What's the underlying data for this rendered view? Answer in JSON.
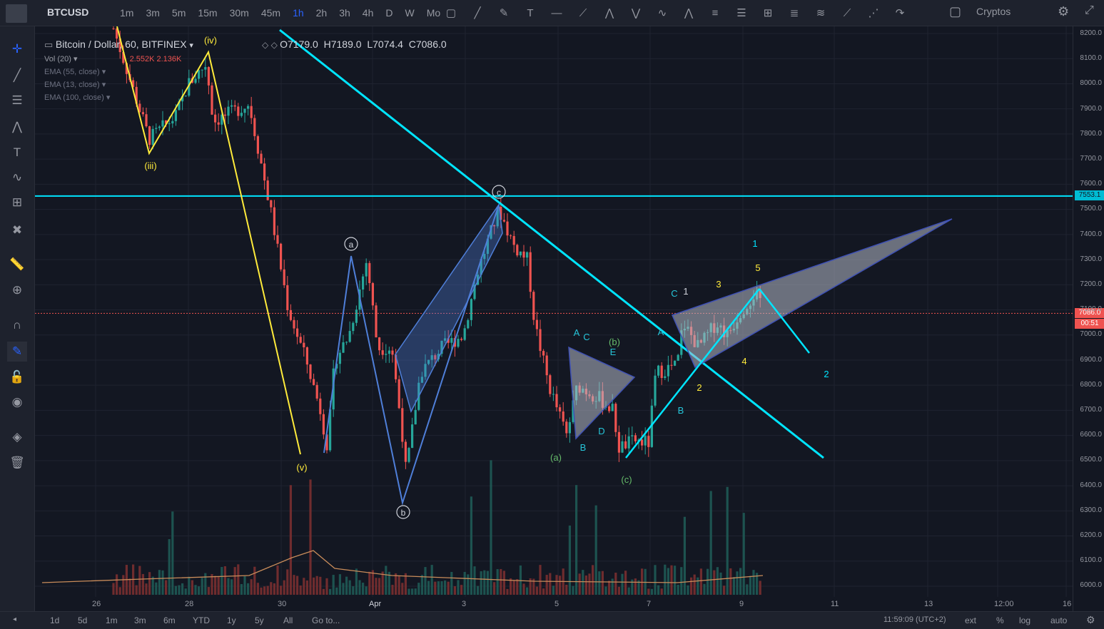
{
  "header": {
    "symbol": "BTCUSD",
    "intervals": [
      "1m",
      "3m",
      "5m",
      "15m",
      "30m",
      "45m",
      "1h",
      "2h",
      "3h",
      "4h",
      "D",
      "W",
      "Mo"
    ],
    "active_interval": "1h",
    "market": "Cryptos"
  },
  "legend": {
    "title": "Bitcoin / Dollar, 60, BITFINEX",
    "open": "O7179.0",
    "high": "H7189.0",
    "low": "L7074.4",
    "close": "C7086.0",
    "vol_label": "Vol (20)",
    "vol_a": "2.552K",
    "vol_b": "2.136K",
    "ema55": "EMA (55, close)",
    "ema13": "EMA (13, close)",
    "ema100": "EMA (100, close)"
  },
  "price_axis": [
    "8200.0",
    "8100.0",
    "8000.0",
    "7900.0",
    "7800.0",
    "7700.0",
    "7600.0",
    "7500.0",
    "7400.0",
    "7300.0",
    "7200.0",
    "7100.0",
    "7000.0",
    "6900.0",
    "6800.0",
    "6700.0",
    "6600.0",
    "6500.0",
    "6400.0",
    "6300.0",
    "6200.0",
    "6100.0",
    "6000.0"
  ],
  "price_tags": {
    "level": "7553.1",
    "last": "7086.0",
    "countdown": "00:51"
  },
  "time_axis": [
    "26",
    "28",
    "30",
    "Apr",
    "3",
    "5",
    "7",
    "9",
    "11",
    "13",
    "12:00",
    "16"
  ],
  "wave_labels": {
    "iii": "(iii)",
    "iv": "(iv)",
    "v": "(v)",
    "a_circ": "a",
    "b_circ": "b",
    "c_circ": "c",
    "pa": "(a)",
    "pb": "(b)",
    "pc": "(c)",
    "A1": "A",
    "C1": "C",
    "E1": "E",
    "B1": "B",
    "D1": "D",
    "A2": "A",
    "B2": "B",
    "C2": "C",
    "n1a": "1",
    "n2": "2",
    "n3": "3",
    "n4": "4",
    "n5": "5",
    "big1": "1",
    "big2": "2"
  },
  "bottom": {
    "ranges": [
      "1d",
      "5d",
      "1m",
      "3m",
      "6m",
      "YTD",
      "1y",
      "5y",
      "All"
    ],
    "goto": "Go to...",
    "clock": "11:59:09 (UTC+2)",
    "opts": [
      "ext",
      "%",
      "log",
      "auto"
    ]
  },
  "colors": {
    "up": "#26a69a",
    "down": "#ef5350",
    "cyan": "#00e5ff",
    "yellow": "#ffeb3b",
    "blue": "#4f7fd9"
  }
}
